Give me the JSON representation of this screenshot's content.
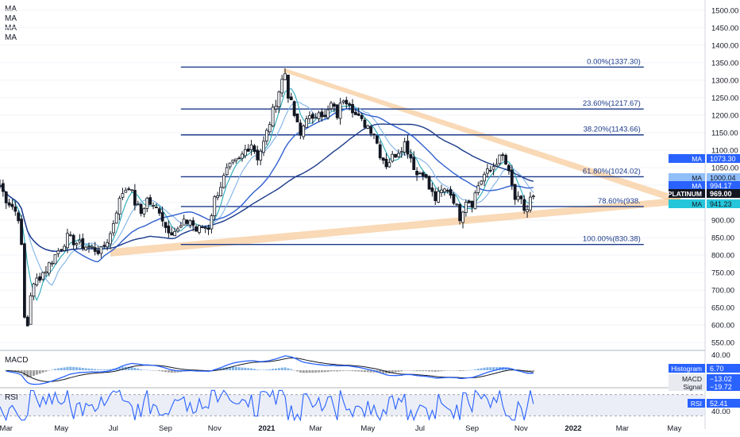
{
  "legend": {
    "ma_labels": [
      "MA",
      "MA",
      "MA",
      "MA"
    ]
  },
  "colors": {
    "candle": "#131722",
    "ma_fast": "#26a9b8",
    "ma_mid": "#7fb2e8",
    "ma_slow": "#2f5fcf",
    "ma_long": "#1b3a8a",
    "fib": "#1b3a8a",
    "triangle": "#f6c58f",
    "macd_line": "#2962ff",
    "signal_line": "#131722",
    "rsi_line": "#2962ff",
    "tag_dark": "#131722",
    "tag_cyan": "#26c6da",
    "tag_blue": "#2962ff"
  },
  "chart_data": {
    "type": "candlestick",
    "symbol": "PLATINUM",
    "x_ticks": [
      "Mar",
      "May",
      "Jul",
      "Sep",
      "Nov",
      "2021",
      "Mar",
      "May",
      "Jul",
      "Sep",
      "Nov",
      "2022",
      "Mar",
      "May"
    ],
    "y_ticks": [
      "1500.00",
      "1450.00",
      "1400.00",
      "1350.00",
      "1300.00",
      "1250.00",
      "1200.00",
      "1150.00",
      "1100.00",
      "1050.00",
      "1000.00",
      "950.00",
      "900.00",
      "850.00",
      "800.00",
      "750.00",
      "700.00",
      "650.00",
      "600.00",
      "550.00"
    ],
    "ylim": [
      530,
      1520
    ],
    "price_points": [
      {
        "t": 0,
        "v": 1000
      },
      {
        "t": 2,
        "v": 960
      },
      {
        "t": 4,
        "v": 940
      },
      {
        "t": 6,
        "v": 910
      },
      {
        "t": 7,
        "v": 820
      },
      {
        "t": 8,
        "v": 620
      },
      {
        "t": 9,
        "v": 600
      },
      {
        "t": 10,
        "v": 690
      },
      {
        "t": 12,
        "v": 730
      },
      {
        "t": 15,
        "v": 760
      },
      {
        "t": 18,
        "v": 800
      },
      {
        "t": 22,
        "v": 850
      },
      {
        "t": 26,
        "v": 830
      },
      {
        "t": 30,
        "v": 820
      },
      {
        "t": 33,
        "v": 810
      },
      {
        "t": 36,
        "v": 860
      },
      {
        "t": 38,
        "v": 930
      },
      {
        "t": 40,
        "v": 980
      },
      {
        "t": 42,
        "v": 1000
      },
      {
        "t": 44,
        "v": 950
      },
      {
        "t": 46,
        "v": 920
      },
      {
        "t": 48,
        "v": 960
      },
      {
        "t": 50,
        "v": 935
      },
      {
        "t": 52,
        "v": 930
      },
      {
        "t": 54,
        "v": 880
      },
      {
        "t": 56,
        "v": 870
      },
      {
        "t": 58,
        "v": 870
      },
      {
        "t": 60,
        "v": 890
      },
      {
        "t": 62,
        "v": 900
      },
      {
        "t": 64,
        "v": 870
      },
      {
        "t": 66,
        "v": 880
      },
      {
        "t": 68,
        "v": 880
      },
      {
        "t": 70,
        "v": 960
      },
      {
        "t": 72,
        "v": 1000
      },
      {
        "t": 74,
        "v": 1040
      },
      {
        "t": 76,
        "v": 1060
      },
      {
        "t": 78,
        "v": 1070
      },
      {
        "t": 80,
        "v": 1100
      },
      {
        "t": 82,
        "v": 1120
      },
      {
        "t": 84,
        "v": 1080
      },
      {
        "t": 86,
        "v": 1120
      },
      {
        "t": 88,
        "v": 1180
      },
      {
        "t": 90,
        "v": 1240
      },
      {
        "t": 92,
        "v": 1300
      },
      {
        "t": 93,
        "v": 1320
      },
      {
        "t": 94,
        "v": 1260
      },
      {
        "t": 96,
        "v": 1200
      },
      {
        "t": 98,
        "v": 1140
      },
      {
        "t": 100,
        "v": 1200
      },
      {
        "t": 102,
        "v": 1180
      },
      {
        "t": 104,
        "v": 1220
      },
      {
        "t": 106,
        "v": 1190
      },
      {
        "t": 108,
        "v": 1230
      },
      {
        "t": 110,
        "v": 1200
      },
      {
        "t": 112,
        "v": 1250
      },
      {
        "t": 114,
        "v": 1240
      },
      {
        "t": 116,
        "v": 1200
      },
      {
        "t": 118,
        "v": 1180
      },
      {
        "t": 120,
        "v": 1170
      },
      {
        "t": 122,
        "v": 1150
      },
      {
        "t": 124,
        "v": 1090
      },
      {
        "t": 126,
        "v": 1060
      },
      {
        "t": 128,
        "v": 1080
      },
      {
        "t": 130,
        "v": 1100
      },
      {
        "t": 132,
        "v": 1120
      },
      {
        "t": 134,
        "v": 1080
      },
      {
        "t": 136,
        "v": 1030
      },
      {
        "t": 138,
        "v": 1040
      },
      {
        "t": 140,
        "v": 990
      },
      {
        "t": 142,
        "v": 960
      },
      {
        "t": 144,
        "v": 980
      },
      {
        "t": 146,
        "v": 990
      },
      {
        "t": 148,
        "v": 960
      },
      {
        "t": 150,
        "v": 910
      },
      {
        "t": 152,
        "v": 960
      },
      {
        "t": 154,
        "v": 950
      },
      {
        "t": 156,
        "v": 1000
      },
      {
        "t": 158,
        "v": 1030
      },
      {
        "t": 160,
        "v": 1040
      },
      {
        "t": 162,
        "v": 1070
      },
      {
        "t": 164,
        "v": 1080
      },
      {
        "t": 165,
        "v": 1060
      },
      {
        "t": 166,
        "v": 1030
      },
      {
        "t": 168,
        "v": 960
      },
      {
        "t": 170,
        "v": 950
      },
      {
        "t": 171,
        "v": 930
      },
      {
        "t": 172,
        "v": 930
      },
      {
        "t": 173,
        "v": 960
      },
      {
        "t": 174,
        "v": 969
      }
    ],
    "fibonacci": [
      {
        "label": "0.00%(1337.30)",
        "value": 1337.3
      },
      {
        "label": "23.60%(1217.67)",
        "value": 1217.67
      },
      {
        "label": "38.20%(1143.66)",
        "value": 1143.66
      },
      {
        "label": "61.80%(1024.02)",
        "value": 1024.02
      },
      {
        "label": "78.60%(938.",
        "value": 938.8
      },
      {
        "label": "100.00%(830.38)",
        "value": 830.38
      }
    ],
    "price_tags": [
      {
        "name": "MA",
        "value": "1073.30",
        "num": 1073.3,
        "style": "blue"
      },
      {
        "name": "MA",
        "value": "1000.04",
        "num": 1000.04,
        "style": "lightblue"
      },
      {
        "name": "MA",
        "value": "994.17",
        "num": 994.17,
        "style": "blue"
      },
      {
        "name": "PLATINUM",
        "value": "969.00",
        "num": 969.0,
        "style": "dark"
      },
      {
        "name": "MA",
        "value": "941.23",
        "num": 941.23,
        "style": "cyan"
      }
    ],
    "macd": {
      "title": "MACD",
      "axis_tick": "40.00",
      "histogram_label": "Histogram",
      "histogram_value": "6.70",
      "macd_label": "MACD",
      "macd_value": "−13.02",
      "signal_label": "Signal",
      "signal_value": "−19.72"
    },
    "rsi": {
      "title": "RSI",
      "axis_tick": "40.00",
      "label": "RSI",
      "value": "52.41",
      "upper_band": 70,
      "lower_band": 30
    }
  }
}
